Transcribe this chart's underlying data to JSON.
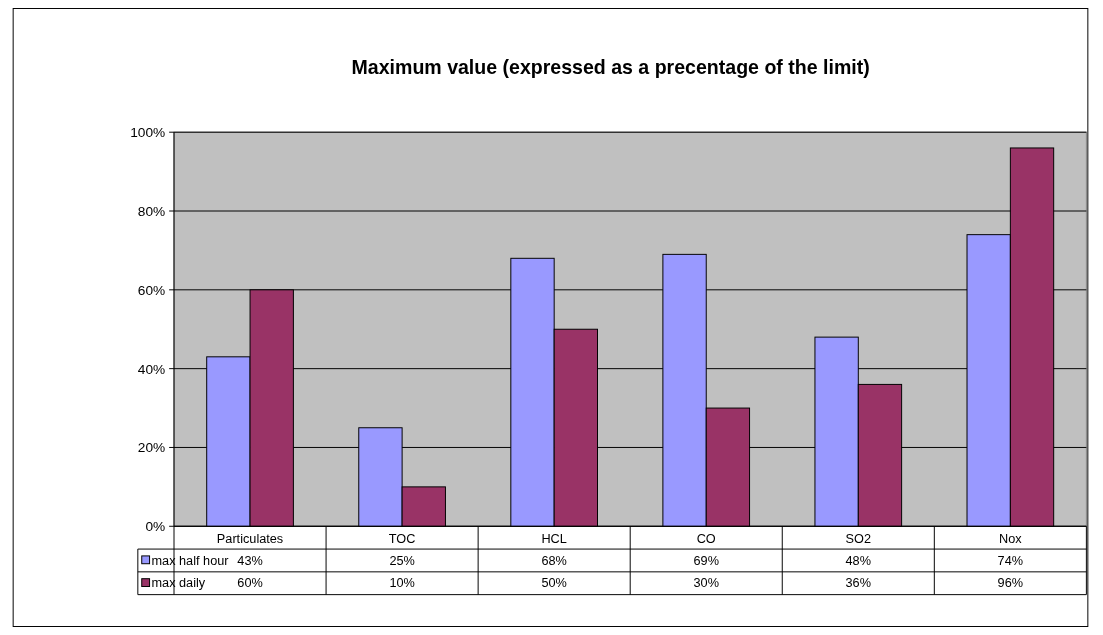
{
  "chart_data": {
    "type": "bar",
    "title": "Maximum value (expressed as a precentage of the limit)",
    "categories": [
      "Particulates",
      "TOC",
      "HCL",
      "CO",
      "SO2",
      "Nox"
    ],
    "series": [
      {
        "name": "max half hour",
        "color": "#9999ff",
        "values": [
          43,
          25,
          68,
          69,
          48,
          74
        ],
        "value_labels": [
          "43%",
          "25%",
          "68%",
          "69%",
          "48%",
          "74%"
        ]
      },
      {
        "name": "max daily",
        "color": "#993366",
        "values": [
          60,
          10,
          50,
          30,
          36,
          96
        ],
        "value_labels": [
          "60%",
          "10%",
          "50%",
          "30%",
          "36%",
          "96%"
        ]
      }
    ],
    "ylim": [
      0,
      100
    ],
    "yticks": [
      {
        "value": 0,
        "label": "0%"
      },
      {
        "value": 20,
        "label": "20%"
      },
      {
        "value": 40,
        "label": "40%"
      },
      {
        "value": 60,
        "label": "60%"
      },
      {
        "value": 80,
        "label": "80%"
      },
      {
        "value": 100,
        "label": "100%"
      }
    ],
    "grid": "y",
    "legend": "bottom"
  }
}
